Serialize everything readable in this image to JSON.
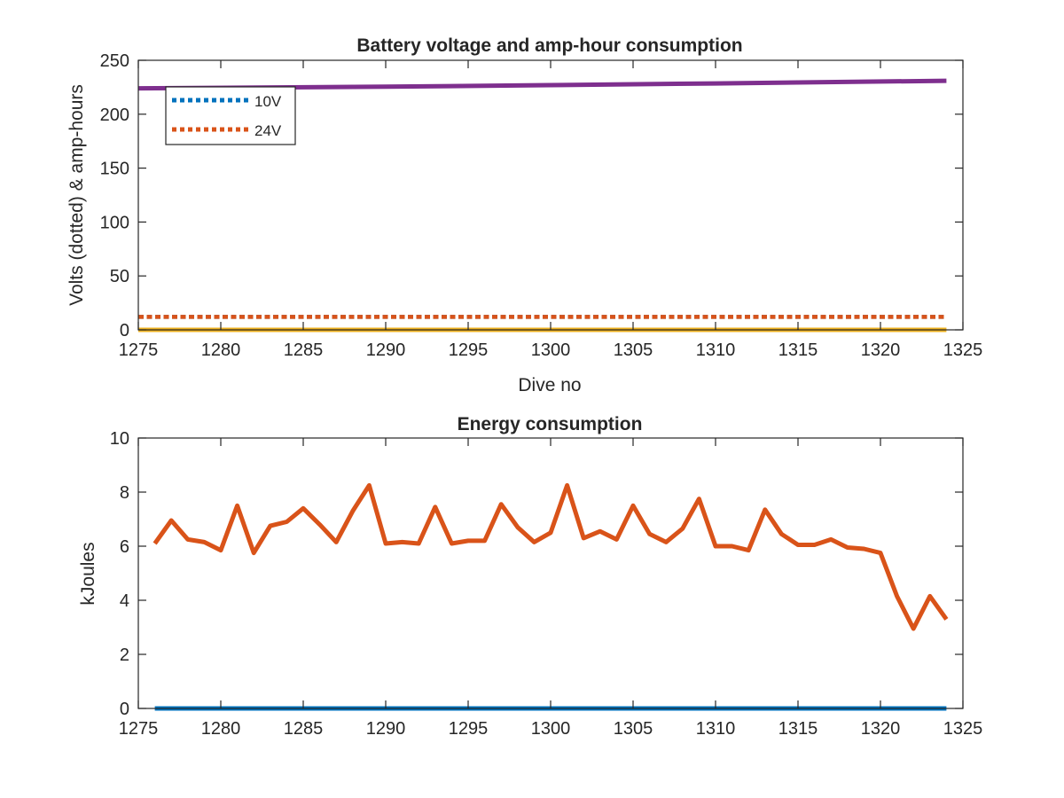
{
  "chart_data": [
    {
      "type": "line",
      "title": "Battery voltage and amp-hour consumption",
      "xlabel": "Dive no",
      "ylabel": "Volts (dotted) & amp-hours",
      "xlim": [
        1275,
        1325
      ],
      "ylim": [
        0,
        250
      ],
      "xticks": [
        "1275",
        "1280",
        "1285",
        "1290",
        "1295",
        "1300",
        "1305",
        "1310",
        "1315",
        "1320",
        "1325"
      ],
      "yticks": [
        "0",
        "50",
        "100",
        "150",
        "200",
        "250"
      ],
      "grid": false,
      "legend_position": "top-left",
      "series": [
        {
          "name": "10V",
          "style": "dotted",
          "color": "#0072BD",
          "x": [
            1275,
            1324
          ],
          "values": [
            12,
            12
          ]
        },
        {
          "name": "24V",
          "style": "dotted",
          "color": "#D95319",
          "x": [
            1275,
            1324
          ],
          "values": [
            12,
            12
          ]
        },
        {
          "style": "solid",
          "color": "#EDB120",
          "x": [
            1275,
            1324
          ],
          "values": [
            0,
            0
          ]
        },
        {
          "style": "solid",
          "color": "#7E2F8E",
          "x": [
            1275,
            1290,
            1300,
            1310,
            1324
          ],
          "values": [
            224,
            225.5,
            227,
            228.5,
            231
          ]
        }
      ]
    },
    {
      "type": "line",
      "title": "Energy consumption",
      "xlabel": "",
      "ylabel": "kJoules",
      "xlim": [
        1275,
        1325
      ],
      "ylim": [
        0,
        10
      ],
      "xticks": [
        "1275",
        "1280",
        "1285",
        "1290",
        "1295",
        "1300",
        "1305",
        "1310",
        "1315",
        "1320",
        "1325"
      ],
      "yticks": [
        "0",
        "2",
        "4",
        "6",
        "8",
        "10"
      ],
      "grid": false,
      "series": [
        {
          "style": "solid",
          "color": "#0072BD",
          "x": [
            1276,
            1324
          ],
          "values": [
            0,
            0
          ]
        },
        {
          "style": "solid",
          "color": "#D95319",
          "x": [
            1276,
            1277,
            1278,
            1279,
            1280,
            1281,
            1282,
            1283,
            1284,
            1285,
            1286,
            1287,
            1288,
            1289,
            1290,
            1291,
            1292,
            1293,
            1294,
            1295,
            1296,
            1297,
            1298,
            1299,
            1300,
            1301,
            1302,
            1303,
            1304,
            1305,
            1306,
            1307,
            1308,
            1309,
            1310,
            1311,
            1312,
            1313,
            1314,
            1315,
            1316,
            1317,
            1318,
            1319,
            1320,
            1321,
            1322,
            1323,
            1324
          ],
          "values": [
            6.1,
            6.95,
            6.25,
            6.15,
            5.85,
            7.5,
            5.75,
            6.75,
            6.9,
            7.4,
            6.8,
            6.15,
            7.3,
            8.25,
            6.1,
            6.15,
            6.1,
            7.45,
            6.1,
            6.2,
            6.2,
            7.55,
            6.7,
            6.15,
            6.5,
            8.25,
            6.3,
            6.55,
            6.25,
            7.5,
            6.45,
            6.15,
            6.65,
            7.75,
            6.0,
            6.0,
            5.85,
            7.35,
            6.45,
            6.05,
            6.05,
            6.25,
            5.95,
            5.9,
            5.75,
            4.15,
            2.95,
            4.15,
            3.3
          ]
        }
      ]
    }
  ]
}
